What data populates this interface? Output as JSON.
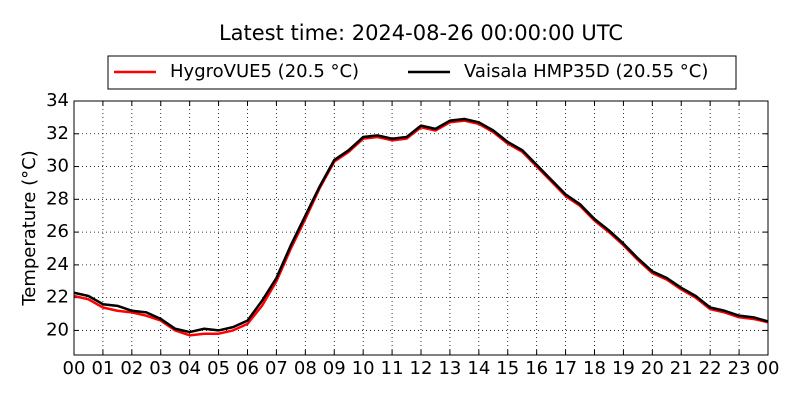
{
  "chart_data": {
    "type": "line",
    "title": "Latest time: 2024-08-26 00:00:00 UTC",
    "ylabel": "Temperature (°C)",
    "x": [
      0,
      0.5,
      1,
      1.5,
      2,
      2.5,
      3,
      3.5,
      4,
      4.5,
      5,
      5.5,
      6,
      6.5,
      7,
      7.5,
      8,
      8.5,
      9,
      9.5,
      10,
      10.5,
      11,
      11.5,
      12,
      12.5,
      13,
      13.5,
      14,
      14.5,
      15,
      15.5,
      16,
      16.5,
      17,
      17.5,
      18,
      18.5,
      19,
      19.5,
      20,
      20.5,
      21,
      21.5,
      22,
      22.5,
      23,
      23.5,
      24
    ],
    "series": [
      {
        "name": "HygroVUE5 (20.5 °C)",
        "color": "#ff0000",
        "values": [
          22.1,
          21.9,
          21.4,
          21.2,
          21.1,
          20.9,
          20.6,
          20.0,
          19.7,
          19.8,
          19.8,
          20.0,
          20.4,
          21.5,
          23.0,
          25.0,
          26.8,
          28.7,
          30.3,
          30.9,
          31.7,
          31.8,
          31.6,
          31.7,
          32.4,
          32.2,
          32.7,
          32.8,
          32.6,
          32.1,
          31.4,
          30.9,
          30.0,
          29.1,
          28.2,
          27.6,
          26.7,
          26.0,
          25.2,
          24.3,
          23.5,
          23.1,
          22.5,
          22.0,
          21.3,
          21.1,
          20.8,
          20.7,
          20.5
        ]
      },
      {
        "name": "Vaisala HMP35D (20.55 °C)",
        "color": "#000000",
        "values": [
          22.3,
          22.1,
          21.6,
          21.5,
          21.2,
          21.1,
          20.7,
          20.1,
          19.9,
          20.1,
          20.0,
          20.2,
          20.6,
          21.8,
          23.2,
          25.2,
          27.0,
          28.8,
          30.4,
          31.0,
          31.8,
          31.9,
          31.7,
          31.8,
          32.5,
          32.3,
          32.8,
          32.9,
          32.7,
          32.2,
          31.5,
          31.0,
          30.1,
          29.2,
          28.3,
          27.7,
          26.8,
          26.1,
          25.3,
          24.4,
          23.6,
          23.2,
          22.6,
          22.1,
          21.4,
          21.2,
          20.9,
          20.8,
          20.55
        ]
      }
    ],
    "xlim": [
      0,
      24
    ],
    "xticks": [
      {
        "value": 0,
        "label": "00"
      },
      {
        "value": 1,
        "label": "01"
      },
      {
        "value": 2,
        "label": "02"
      },
      {
        "value": 3,
        "label": "03"
      },
      {
        "value": 4,
        "label": "04"
      },
      {
        "value": 5,
        "label": "05"
      },
      {
        "value": 6,
        "label": "06"
      },
      {
        "value": 7,
        "label": "07"
      },
      {
        "value": 8,
        "label": "08"
      },
      {
        "value": 9,
        "label": "09"
      },
      {
        "value": 10,
        "label": "10"
      },
      {
        "value": 11,
        "label": "11"
      },
      {
        "value": 12,
        "label": "12"
      },
      {
        "value": 13,
        "label": "13"
      },
      {
        "value": 14,
        "label": "14"
      },
      {
        "value": 15,
        "label": "15"
      },
      {
        "value": 16,
        "label": "16"
      },
      {
        "value": 17,
        "label": "17"
      },
      {
        "value": 18,
        "label": "18"
      },
      {
        "value": 19,
        "label": "19"
      },
      {
        "value": 20,
        "label": "20"
      },
      {
        "value": 21,
        "label": "21"
      },
      {
        "value": 22,
        "label": "22"
      },
      {
        "value": 23,
        "label": "23"
      },
      {
        "value": 24,
        "label": "00"
      }
    ],
    "ylim": [
      18.5,
      34
    ],
    "yticks": [
      20,
      22,
      24,
      26,
      28,
      30,
      32,
      34
    ],
    "grid": true,
    "legend": "top"
  }
}
